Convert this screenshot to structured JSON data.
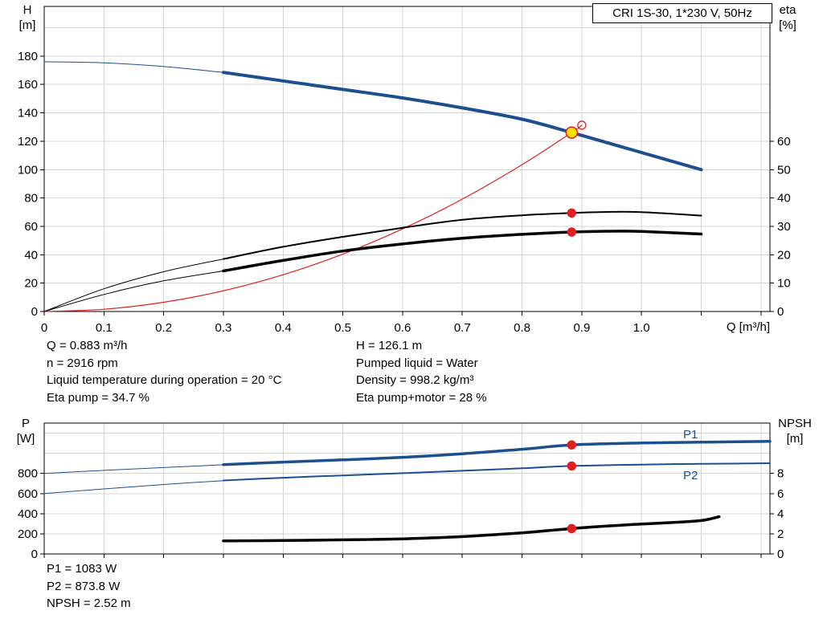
{
  "axes": {
    "top_left": [
      "H",
      "[m]"
    ],
    "top_right": [
      "eta",
      "[%]"
    ],
    "top_x": "Q [m³/h]",
    "bottom_left": [
      "P",
      "[W]"
    ],
    "bottom_right": [
      "NPSH",
      "[m]"
    ]
  },
  "info_top": {
    "col1": [
      "Q = 0.883 m³/h",
      "n = 2916 rpm",
      "Liquid temperature during operation = 20 °C",
      "Eta pump = 34.7 %"
    ],
    "col2": [
      "H = 126.1 m",
      "Pumped liquid = Water",
      "Density = 998.2 kg/m³",
      "Eta pump+motor = 28 %"
    ]
  },
  "info_bottom": [
    "P1 = 1083 W",
    "P2 = 873.8 W",
    "NPSH = 2.52 m"
  ],
  "colors": {
    "pump_blue": "#1c4f8f",
    "system_red": "#e02020",
    "curve_black": "#000000",
    "grid_gray": "#d4d4d4",
    "duty_yellow": "#ffe000"
  },
  "chart_data": [
    {
      "type": "line",
      "title": "CRI 1S-30, 1*230 V, 50Hz",
      "xlabel": "Q [m³/h]",
      "ylabel_left": "H [m]",
      "ylabel_right": "eta [%]",
      "xlim": [
        0,
        1.215
      ],
      "ylim_left": [
        0,
        215
      ],
      "ylim_right": [
        0,
        107.5
      ],
      "grid": true,
      "legend": "none",
      "x_ticks": {
        "values": [
          0,
          0.1,
          0.2,
          0.3,
          0.4,
          0.5,
          0.6,
          0.7,
          0.8,
          0.9,
          1.0,
          1.1,
          1.2
        ],
        "labels": [
          "0",
          "0.1",
          "0.2",
          "0.3",
          "0.4",
          "0.5",
          "0.6",
          "0.7",
          "0.8",
          "0.9",
          "1.0"
        ]
      },
      "y_ticks_left": {
        "values": [
          0,
          20,
          40,
          60,
          80,
          100,
          120,
          140,
          160,
          180
        ],
        "labels": [
          "0",
          "20",
          "40",
          "60",
          "80",
          "100",
          "120",
          "140",
          "160",
          "180"
        ]
      },
      "y_ticks_right": {
        "values": [
          0,
          10,
          20,
          30,
          40,
          50,
          60
        ],
        "labels": [
          "0",
          "10",
          "20",
          "30",
          "40",
          "50",
          "60"
        ]
      },
      "grid_x": [
        0.1,
        0.2,
        0.3,
        0.4,
        0.5,
        0.6,
        0.7,
        0.8,
        0.9,
        1.0,
        1.1,
        1.2
      ],
      "grid_y_left": [
        20,
        40,
        60,
        80,
        100,
        120,
        140,
        160,
        180,
        200
      ],
      "series": [
        {
          "name": "H curve",
          "axis": "left",
          "color": "#1c4f8f",
          "width": 4,
          "points": [
            [
              0.3,
              168.5
            ],
            [
              0.4,
              162.5
            ],
            [
              0.5,
              156.5
            ],
            [
              0.6,
              150.5
            ],
            [
              0.7,
              143.5
            ],
            [
              0.8,
              135.5
            ],
            [
              0.883,
              126.1
            ],
            [
              1.0,
              112
            ],
            [
              1.1,
              100
            ]
          ]
        },
        {
          "name": "H curve extension",
          "axis": "left",
          "color": "#1c4f8f",
          "width": 1,
          "points": [
            [
              0,
              176
            ],
            [
              0.1,
              175.2
            ],
            [
              0.2,
              172.6
            ],
            [
              0.3,
              168.5
            ]
          ]
        },
        {
          "name": "System curve",
          "axis": "left",
          "color": "#e02020",
          "width": 1.2,
          "points": [
            [
              0,
              0
            ],
            [
              0.1,
              1.6
            ],
            [
              0.2,
              6.5
            ],
            [
              0.3,
              14.6
            ],
            [
              0.4,
              25.9
            ],
            [
              0.5,
              40.4
            ],
            [
              0.6,
              58.2
            ],
            [
              0.7,
              79.2
            ],
            [
              0.8,
              103.5
            ],
            [
              0.883,
              126.1
            ],
            [
              0.9,
              131.3
            ]
          ]
        },
        {
          "name": "Eta pump lead",
          "axis": "right",
          "color": "#000000",
          "width": 1,
          "points": [
            [
              0,
              0
            ],
            [
              0.1,
              8
            ],
            [
              0.2,
              14
            ],
            [
              0.3,
              18.5
            ]
          ]
        },
        {
          "name": "Eta pump",
          "axis": "right",
          "color": "#000000",
          "width": 2,
          "points": [
            [
              0.3,
              18.5
            ],
            [
              0.4,
              22.8
            ],
            [
              0.5,
              26.3
            ],
            [
              0.6,
              29.5
            ],
            [
              0.7,
              32.3
            ],
            [
              0.8,
              33.9
            ],
            [
              0.883,
              34.7
            ],
            [
              0.95,
              35.1
            ],
            [
              1.0,
              35.0
            ],
            [
              1.1,
              33.8
            ]
          ]
        },
        {
          "name": "Eta pump+motor lead",
          "axis": "right",
          "color": "#000000",
          "width": 1,
          "points": [
            [
              0,
              0
            ],
            [
              0.1,
              6
            ],
            [
              0.2,
              10.8
            ],
            [
              0.3,
              14.3
            ]
          ]
        },
        {
          "name": "Eta pump+motor",
          "axis": "right",
          "color": "#000000",
          "width": 3.5,
          "points": [
            [
              0.3,
              14.3
            ],
            [
              0.4,
              18.0
            ],
            [
              0.5,
              21.3
            ],
            [
              0.6,
              23.8
            ],
            [
              0.7,
              25.8
            ],
            [
              0.8,
              27.2
            ],
            [
              0.883,
              28.0
            ],
            [
              0.95,
              28.3
            ],
            [
              1.0,
              28.2
            ],
            [
              1.1,
              27.3
            ]
          ]
        }
      ],
      "markers": [
        {
          "name": "duty-point",
          "x": 0.883,
          "value": 126.1,
          "axis": "left",
          "r": 7,
          "fill": "#ffe000",
          "stroke": "#e02020",
          "open": false
        },
        {
          "name": "requested-duty-point",
          "x": 0.9,
          "value": 131.3,
          "axis": "left",
          "r": 5,
          "fill": "none",
          "stroke": "#e02020",
          "open": true
        },
        {
          "name": "eta-pump-point",
          "x": 0.883,
          "value": 34.7,
          "axis": "right",
          "r": 5,
          "fill": "#e02020",
          "stroke": "#e02020",
          "open": false
        },
        {
          "name": "eta-pump-motor-point",
          "x": 0.883,
          "value": 28,
          "axis": "right",
          "r": 5,
          "fill": "#e02020",
          "stroke": "#e02020",
          "open": false
        }
      ]
    },
    {
      "type": "line",
      "title": "",
      "xlabel": "",
      "ylabel_left": "P [W]",
      "ylabel_right": "NPSH [m]",
      "xlim": [
        0,
        1.215
      ],
      "ylim_left": [
        0,
        1300
      ],
      "ylim_right": [
        0,
        13
      ],
      "grid": true,
      "legend": "none",
      "x_ticks": {
        "values": [
          0,
          0.1,
          0.2,
          0.3,
          0.4,
          0.5,
          0.6,
          0.7,
          0.8,
          0.9,
          1.0,
          1.1,
          1.2
        ],
        "labels": []
      },
      "y_ticks_left": {
        "values": [
          0,
          200,
          400,
          600,
          800
        ],
        "labels": [
          "0",
          "200",
          "400",
          "600",
          "800"
        ]
      },
      "y_ticks_right": {
        "values": [
          0,
          2,
          4,
          6,
          8
        ],
        "labels": [
          "0",
          "2",
          "4",
          "6",
          "8"
        ]
      },
      "grid_x": [
        0.1,
        0.2,
        0.3,
        0.4,
        0.5,
        0.6,
        0.7,
        0.8,
        0.9,
        1.0,
        1.1,
        1.2
      ],
      "grid_y_left": [
        200,
        400,
        600,
        800,
        1000,
        1200
      ],
      "series": [
        {
          "name": "P1 lead",
          "axis": "left",
          "color": "#1c4f8f",
          "width": 1,
          "points": [
            [
              0,
              800
            ],
            [
              0.1,
              830
            ],
            [
              0.2,
              858
            ],
            [
              0.3,
              886
            ]
          ]
        },
        {
          "name": "P1",
          "axis": "left",
          "color": "#1c4f8f",
          "width": 3.5,
          "points": [
            [
              0.3,
              888
            ],
            [
              0.4,
              912
            ],
            [
              0.5,
              935
            ],
            [
              0.6,
              960
            ],
            [
              0.7,
              995
            ],
            [
              0.8,
              1040
            ],
            [
              0.883,
              1083
            ],
            [
              1.0,
              1102
            ],
            [
              1.1,
              1110
            ],
            [
              1.215,
              1118
            ]
          ]
        },
        {
          "name": "P2 lead",
          "axis": "left",
          "color": "#1c4f8f",
          "width": 1,
          "points": [
            [
              0,
              600
            ],
            [
              0.1,
              646
            ],
            [
              0.2,
              690
            ],
            [
              0.3,
              728
            ]
          ]
        },
        {
          "name": "P2",
          "axis": "left",
          "color": "#1c4f8f",
          "width": 2,
          "points": [
            [
              0.3,
              730
            ],
            [
              0.4,
              757
            ],
            [
              0.5,
              780
            ],
            [
              0.6,
              802
            ],
            [
              0.7,
              826
            ],
            [
              0.8,
              851
            ],
            [
              0.883,
              873.8
            ],
            [
              1.0,
              888
            ],
            [
              1.1,
              895
            ],
            [
              1.215,
              901
            ]
          ]
        },
        {
          "name": "NPSH",
          "axis": "right",
          "color": "#000000",
          "width": 3.5,
          "points": [
            [
              0.3,
              1.3
            ],
            [
              0.4,
              1.33
            ],
            [
              0.5,
              1.4
            ],
            [
              0.6,
              1.5
            ],
            [
              0.7,
              1.72
            ],
            [
              0.8,
              2.1
            ],
            [
              0.883,
              2.52
            ],
            [
              0.95,
              2.8
            ],
            [
              1.0,
              2.97
            ],
            [
              1.05,
              3.12
            ],
            [
              1.1,
              3.32
            ],
            [
              1.13,
              3.7
            ]
          ]
        }
      ],
      "markers": [
        {
          "name": "p1-point",
          "x": 0.883,
          "value": 1083,
          "axis": "left",
          "r": 5,
          "fill": "#e02020",
          "stroke": "#e02020",
          "open": false
        },
        {
          "name": "p2-point",
          "x": 0.883,
          "value": 873.8,
          "axis": "left",
          "r": 5,
          "fill": "#e02020",
          "stroke": "#e02020",
          "open": false
        },
        {
          "name": "npsh-point",
          "x": 0.883,
          "value": 2.52,
          "axis": "right",
          "r": 5,
          "fill": "#e02020",
          "stroke": "#e02020",
          "open": false
        }
      ]
    }
  ]
}
